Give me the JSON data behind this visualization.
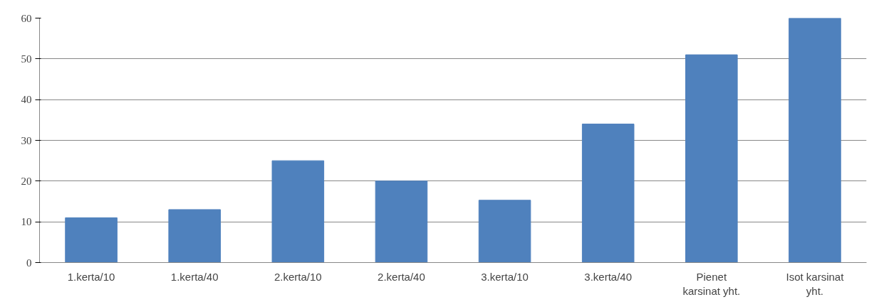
{
  "chart_data": {
    "type": "bar",
    "categories": [
      "1.kerta/10",
      "1.kerta/40",
      "2.kerta/10",
      "2.kerta/40",
      "3.kerta/10",
      "3.kerta/40",
      "Pienet\nkarsinat yht.",
      "Isot karsinat\nyht."
    ],
    "values": [
      11,
      13,
      25,
      20,
      15.3,
      34,
      51,
      60
    ],
    "color": "#4f81bd",
    "ylim": [
      0,
      60
    ],
    "yticks": [
      0,
      10,
      20,
      30,
      40,
      50,
      60
    ],
    "grid": "y"
  }
}
